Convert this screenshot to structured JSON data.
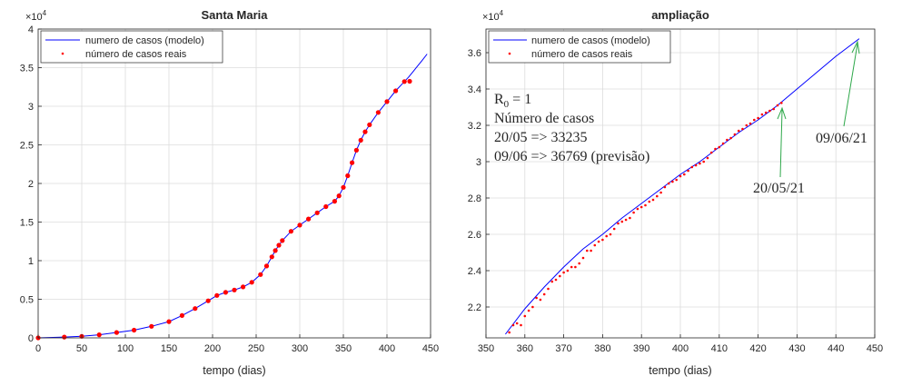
{
  "colors": {
    "model_line": "#0000ff",
    "real_points": "#ff0000",
    "annotation_green": "#2ea84a",
    "annotation_red": "#d62020",
    "annotation_blue": "#3a4fb0",
    "grid": "#dcdcdc",
    "axes": "#262626"
  },
  "chart_data": [
    {
      "type": "line",
      "title": "Santa Maria",
      "xlabel": "tempo (dias)",
      "ylabel": "",
      "exponent_label": "×10",
      "exponent_power": "4",
      "xlim": [
        0,
        450
      ],
      "ylim": [
        0,
        40000
      ],
      "xticks": [
        0,
        50,
        100,
        150,
        200,
        250,
        300,
        350,
        400,
        450
      ],
      "yticks": [
        0,
        5000,
        10000,
        15000,
        20000,
        25000,
        30000,
        35000,
        40000
      ],
      "yticklabels": [
        "0",
        "0.5",
        "1",
        "1.5",
        "2",
        "2.5",
        "3",
        "3.5",
        "4"
      ],
      "grid": true,
      "legend": {
        "placement": "top-left",
        "entries": [
          "numero de casos (modelo)",
          "número de casos reais"
        ]
      },
      "series": [
        {
          "name": "numero de casos (modelo)",
          "style": "line",
          "x": [
            0,
            30,
            50,
            70,
            90,
            110,
            130,
            150,
            165,
            180,
            195,
            205,
            215,
            225,
            235,
            245,
            255,
            262,
            268,
            272,
            276,
            280,
            290,
            300,
            310,
            320,
            330,
            340,
            345,
            350,
            355,
            360,
            365,
            370,
            375,
            380,
            390,
            400,
            410,
            420,
            425,
            430,
            435,
            440,
            446
          ],
          "y": [
            0,
            100,
            200,
            400,
            700,
            1000,
            1500,
            2100,
            2900,
            3800,
            4800,
            5500,
            5900,
            6200,
            6600,
            7200,
            8200,
            9300,
            10500,
            11300,
            12000,
            12600,
            13800,
            14600,
            15400,
            16200,
            17000,
            17700,
            18400,
            19500,
            21000,
            22700,
            24300,
            25600,
            26700,
            27600,
            29200,
            30600,
            32000,
            33200,
            33800,
            34500,
            35200,
            35900,
            36769
          ]
        },
        {
          "name": "número de casos reais",
          "style": "markers",
          "x": [
            0,
            30,
            50,
            70,
            90,
            110,
            130,
            150,
            165,
            180,
            195,
            205,
            215,
            225,
            235,
            245,
            255,
            262,
            268,
            272,
            276,
            280,
            290,
            300,
            310,
            320,
            330,
            340,
            345,
            350,
            355,
            360,
            365,
            370,
            375,
            380,
            390,
            400,
            410,
            420,
            426
          ],
          "y": [
            0,
            100,
            200,
            400,
            700,
            1000,
            1500,
            2100,
            2900,
            3800,
            4800,
            5500,
            5900,
            6200,
            6600,
            7200,
            8200,
            9300,
            10500,
            11300,
            12000,
            12600,
            13800,
            14600,
            15400,
            16200,
            17000,
            17700,
            18400,
            19500,
            21000,
            22700,
            24300,
            25600,
            26700,
            27600,
            29200,
            30600,
            32000,
            33200,
            33235
          ]
        }
      ]
    },
    {
      "type": "line",
      "title": "ampliação",
      "xlabel": "tempo (dias)",
      "ylabel": "",
      "exponent_label": "×10",
      "exponent_power": "4",
      "xlim": [
        350,
        450
      ],
      "ylim": [
        20300,
        37300
      ],
      "xticks": [
        350,
        360,
        370,
        380,
        390,
        400,
        410,
        420,
        430,
        440,
        450
      ],
      "yticks": [
        22000,
        24000,
        26000,
        28000,
        30000,
        32000,
        34000,
        36000
      ],
      "yticklabels": [
        "2.2",
        "2.4",
        "2.6",
        "2.8",
        "3",
        "3.2",
        "3.4",
        "3.6"
      ],
      "grid": true,
      "legend": {
        "placement": "top-left",
        "entries": [
          "numero de casos (modelo)",
          "número de casos reais"
        ]
      },
      "series": [
        {
          "name": "numero de casos (modelo)",
          "style": "line",
          "x": [
            355,
            360,
            365,
            370,
            375,
            380,
            385,
            390,
            395,
            400,
            405,
            410,
            415,
            420,
            425,
            430,
            435,
            440,
            446
          ],
          "y": [
            20500,
            21900,
            23100,
            24200,
            25200,
            26000,
            26900,
            27700,
            28500,
            29300,
            30000,
            30800,
            31600,
            32300,
            33100,
            34000,
            34900,
            35800,
            36769
          ]
        },
        {
          "name": "número de casos reais",
          "style": "markers",
          "x": [
            356,
            357,
            358,
            359,
            360,
            361,
            362,
            363,
            364,
            365,
            366,
            367,
            368,
            369,
            370,
            371,
            372,
            373,
            374,
            375,
            376,
            377,
            378,
            379,
            380,
            381,
            382,
            383,
            384,
            385,
            386,
            387,
            388,
            389,
            390,
            391,
            392,
            393,
            394,
            395,
            396,
            397,
            398,
            399,
            400,
            401,
            402,
            403,
            404,
            405,
            406,
            407,
            408,
            409,
            410,
            411,
            412,
            413,
            414,
            415,
            416,
            417,
            418,
            419,
            420,
            421,
            422,
            423,
            424,
            425,
            426
          ],
          "y": [
            20600,
            21000,
            21100,
            21000,
            21500,
            21800,
            22000,
            22500,
            22400,
            22700,
            23000,
            23400,
            23500,
            23700,
            23900,
            24000,
            24200,
            24200,
            24400,
            24700,
            25100,
            25100,
            25400,
            25600,
            25700,
            25900,
            26000,
            26300,
            26600,
            26700,
            26800,
            26900,
            27200,
            27400,
            27500,
            27600,
            27800,
            27900,
            28100,
            28300,
            28600,
            28800,
            28900,
            29000,
            29200,
            29300,
            29500,
            29700,
            29800,
            29900,
            30000,
            30200,
            30500,
            30700,
            30800,
            31000,
            31200,
            31300,
            31500,
            31700,
            31800,
            32000,
            32100,
            32300,
            32400,
            32600,
            32700,
            32800,
            32900,
            33100,
            33235
          ]
        }
      ],
      "annotations": {
        "r0_base": "R",
        "r0_sub": "0",
        "r0_rest": " = 1",
        "cases_label": "Número de casos",
        "line_real": "20/05 => 33235",
        "line_prev_value": "09/06 => 36769",
        "line_prev_note": " (previsão)",
        "date_real": "20/05/21",
        "date_prev": "09/06/21"
      }
    }
  ]
}
